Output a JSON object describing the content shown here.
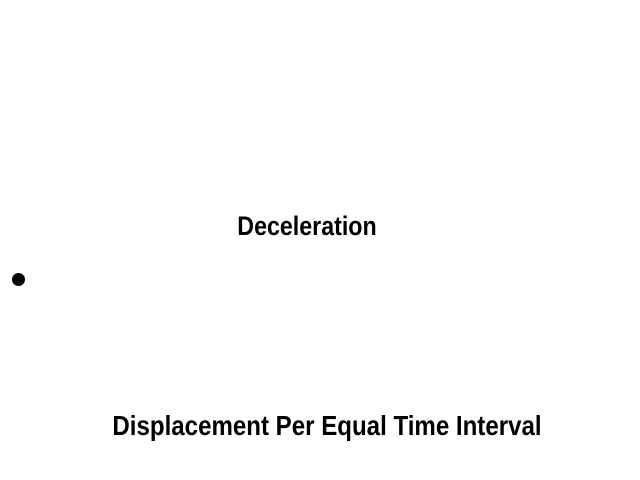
{
  "title": "Deceleration",
  "caption": "Displacement Per Equal Time Interval",
  "colors": {
    "background": "#ffffff",
    "text": "#000000",
    "dot": "#000000"
  }
}
